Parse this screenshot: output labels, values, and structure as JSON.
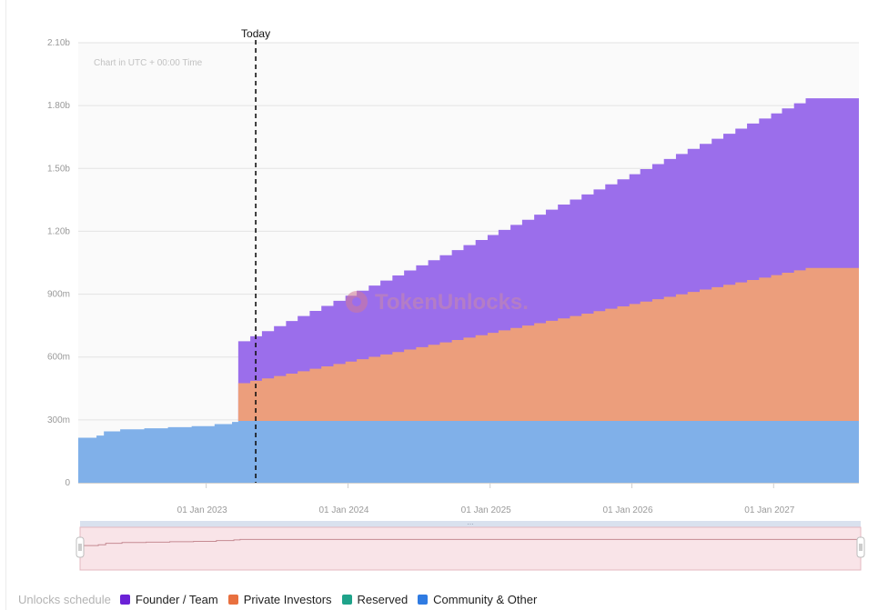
{
  "chart_data": {
    "type": "area",
    "subtitle": "Chart in UTC + 00:00 Time",
    "watermark": "TokenUnlocks.",
    "today_marker": {
      "label": "Today",
      "date": "2023-06-15"
    },
    "y_ticks": [
      "0",
      "300m",
      "600m",
      "900m",
      "1.20b",
      "1.50b",
      "1.80b",
      "2.10b"
    ],
    "y_range": [
      0,
      2100000000
    ],
    "x_ticks": [
      {
        "label": "01 Jan 2023",
        "date": "2023-01-01"
      },
      {
        "label": "01 Jan 2024",
        "date": "2024-01-01"
      },
      {
        "label": "01 Jan 2025",
        "date": "2025-01-01"
      },
      {
        "label": "01 Jan 2026",
        "date": "2026-01-01"
      },
      {
        "label": "01 Jan 2027",
        "date": "2027-01-01"
      }
    ],
    "x_range": [
      "2022-03-15",
      "2027-09-15"
    ],
    "grid": true,
    "legend_placement": "bottom-left",
    "series": [
      {
        "name": "Community & Other",
        "color": "#80b0e9",
        "points": [
          [
            "2022-03-15",
            215000000
          ],
          [
            "2022-05-01",
            225000000
          ],
          [
            "2022-05-20",
            245000000
          ],
          [
            "2022-07-01",
            255000000
          ],
          [
            "2022-09-01",
            260000000
          ],
          [
            "2022-11-01",
            265000000
          ],
          [
            "2023-01-01",
            270000000
          ],
          [
            "2023-03-01",
            280000000
          ],
          [
            "2023-04-15",
            290000000
          ],
          [
            "2023-05-01",
            295000000
          ],
          [
            "2023-06-01",
            295000000
          ],
          [
            "2027-09-15",
            295000000
          ]
        ]
      },
      {
        "name": "Private Investors",
        "color": "#ec9e7c",
        "steps": {
          "start": "2023-05-01",
          "start_value": 180000000,
          "end": "2027-06-01",
          "end_value": 730000000,
          "months": 49
        }
      },
      {
        "name": "Founder / Team",
        "color": "#9b6eeb",
        "steps": {
          "start": "2023-05-01",
          "start_value": 200000000,
          "end": "2027-06-01",
          "end_value": 810000000,
          "months": 49
        }
      }
    ],
    "navigator": {
      "series_color": "#c58a92",
      "background": "#f9e4e8"
    }
  },
  "legend": {
    "title": "Unlocks schedule",
    "items": [
      {
        "label": "Founder / Team",
        "color": "#6b22d6"
      },
      {
        "label": "Private Investors",
        "color": "#e8703f"
      },
      {
        "label": "Reserved",
        "color": "#1fa38a"
      },
      {
        "label": "Community & Other",
        "color": "#2f7be2"
      }
    ]
  }
}
